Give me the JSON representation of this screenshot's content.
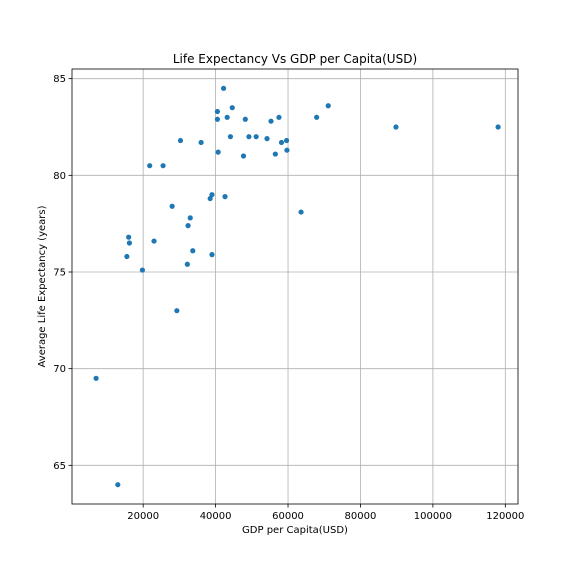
{
  "chart_data": {
    "type": "scatter",
    "title": "Life Expectancy Vs GDP per Capita(USD)",
    "xlabel": "GDP per Capita(USD)",
    "ylabel": "Average Life Expectancy (years)",
    "xlim": [
      350,
      123500
    ],
    "ylim": [
      63.0,
      85.5
    ],
    "xticks": [
      20000,
      40000,
      60000,
      80000,
      100000,
      120000
    ],
    "yticks": [
      65,
      70,
      75,
      80,
      85
    ],
    "grid": true,
    "color": "#1f77b4",
    "x": [
      7000,
      13000,
      15500,
      16000,
      16200,
      19800,
      21800,
      23000,
      25500,
      28000,
      29300,
      30300,
      32200,
      32400,
      33000,
      33700,
      36000,
      38500,
      39000,
      39000,
      40500,
      40500,
      40700,
      42200,
      42600,
      43200,
      44100,
      44600,
      47700,
      48200,
      49200,
      51200,
      54200,
      55300,
      56500,
      57500,
      58200,
      59600,
      59700,
      63600,
      67900,
      71100,
      89800,
      118000
    ],
    "y": [
      69.5,
      64.0,
      75.8,
      76.8,
      76.5,
      75.1,
      80.5,
      76.6,
      80.5,
      78.4,
      73.0,
      81.8,
      75.4,
      77.4,
      77.8,
      76.1,
      81.7,
      78.8,
      79.0,
      75.9,
      83.3,
      82.9,
      81.2,
      84.5,
      78.9,
      83.0,
      82.0,
      83.5,
      81.0,
      82.9,
      82.0,
      82.0,
      81.9,
      82.8,
      81.1,
      83.0,
      81.7,
      81.8,
      81.3,
      78.1,
      83.0,
      83.6,
      82.5,
      82.5
    ]
  }
}
